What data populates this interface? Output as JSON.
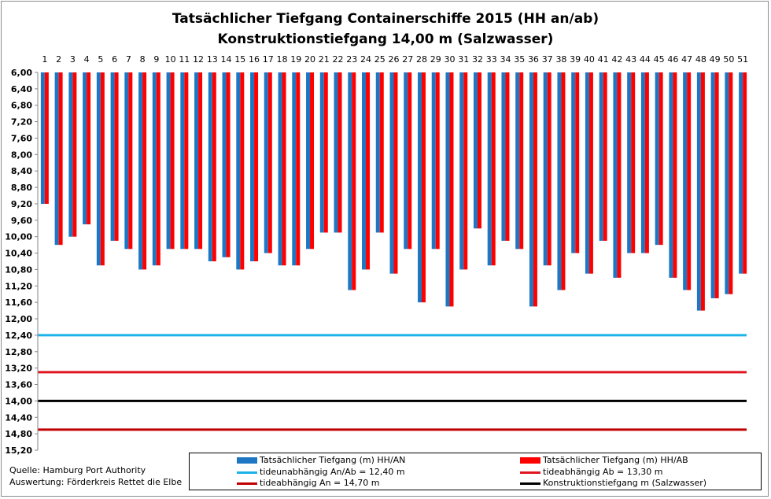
{
  "chart_data": {
    "type": "bar",
    "title": "Tatsächlicher  Tiefgang Containerschiffe  2015 (HH an/ab)",
    "subtitle": "Konstruktionstiefgang   14,00 m  (Salzwasser)",
    "ylim": [
      6.0,
      15.2
    ],
    "y_inverted": true,
    "y_ticks": [
      "6,00",
      "6,40",
      "6,80",
      "7,20",
      "7,60",
      "8,00",
      "8,40",
      "8,80",
      "9,20",
      "9,60",
      "10,00",
      "10,40",
      "10,80",
      "11,20",
      "11,60",
      "12,00",
      "12,40",
      "12,80",
      "13,20",
      "13,60",
      "14,00",
      "14,40",
      "14,80",
      "15,20"
    ],
    "y_tick_values": [
      6.0,
      6.4,
      6.8,
      7.2,
      7.6,
      8.0,
      8.4,
      8.8,
      9.2,
      9.6,
      10.0,
      10.4,
      10.8,
      11.2,
      11.6,
      12.0,
      12.4,
      12.8,
      13.2,
      13.6,
      14.0,
      14.4,
      14.8,
      15.2
    ],
    "categories": [
      "1",
      "2",
      "3",
      "4",
      "5",
      "6",
      "7",
      "8",
      "9",
      "10",
      "11",
      "12",
      "13",
      "14",
      "15",
      "16",
      "17",
      "18",
      "19",
      "20",
      "21",
      "22",
      "23",
      "24",
      "25",
      "26",
      "27",
      "28",
      "29",
      "30",
      "31",
      "32",
      "33",
      "34",
      "35",
      "36",
      "37",
      "38",
      "39",
      "40",
      "41",
      "42",
      "43",
      "44",
      "45",
      "46",
      "47",
      "48",
      "49",
      "50",
      "51"
    ],
    "series": [
      {
        "name": "Tatsächlicher Tiefgang (m) HH/AN",
        "color": "#1f77c4",
        "values": [
          9.2,
          10.2,
          10.0,
          9.7,
          10.7,
          10.1,
          10.3,
          10.8,
          10.7,
          10.3,
          10.3,
          10.3,
          10.6,
          10.5,
          10.8,
          10.6,
          10.4,
          10.7,
          10.7,
          10.3,
          9.9,
          9.9,
          11.3,
          10.8,
          9.9,
          10.9,
          10.3,
          11.6,
          10.3,
          11.7,
          10.8,
          9.8,
          10.7,
          10.1,
          10.3,
          11.7,
          10.7,
          11.3,
          10.4,
          10.9,
          10.1,
          11.0,
          10.4,
          10.4,
          10.2,
          11.0,
          11.3,
          11.8,
          11.5,
          11.4,
          10.9
        ]
      },
      {
        "name": "Tatsächlicher Tiefgang (m) HH/AB",
        "color": "#ff0000",
        "values": [
          9.2,
          10.2,
          10.0,
          9.7,
          10.7,
          10.1,
          10.3,
          10.8,
          10.7,
          10.3,
          10.3,
          10.3,
          10.6,
          10.5,
          10.8,
          10.6,
          10.4,
          10.7,
          10.7,
          10.3,
          9.9,
          9.9,
          11.3,
          10.8,
          9.9,
          10.9,
          10.3,
          11.6,
          10.3,
          11.7,
          10.8,
          9.8,
          10.7,
          10.1,
          10.3,
          11.7,
          10.7,
          11.3,
          10.4,
          10.9,
          10.1,
          11.0,
          10.4,
          10.4,
          10.2,
          11.0,
          11.3,
          11.8,
          11.5,
          11.4,
          10.9
        ]
      }
    ],
    "reference_lines": [
      {
        "name": "tideunabhängig An/Ab = 12,40 m",
        "value": 12.4,
        "color": "#1ab2e8"
      },
      {
        "name": "tideabhängig Ab = 13,30 m",
        "value": 13.3,
        "color": "#e0151f"
      },
      {
        "name": "tideabhängig An = 14,70 m",
        "value": 14.7,
        "color": "#c00000"
      },
      {
        "name": "Konstruktionstiefgang  m (Salzwasser)",
        "value": 14.0,
        "color": "#000000"
      }
    ],
    "grid": false
  },
  "source": {
    "line1": "Quelle: Hamburg Port Authority",
    "line2": "Auswertung: Förderkreis Rettet die Elbe"
  },
  "legend": {
    "an": "Tatsächlicher Tiefgang (m) HH/AN",
    "ab": "Tatsächlicher Tiefgang (m) HH/AB",
    "tideunabh": "tideunabhängig An/Ab = 12,40 m",
    "tideab": "tideabhängig Ab = 13,30 m",
    "tidean": "tideabhängig An = 14,70 m",
    "konstr": "Konstruktionstiefgang  m (Salzwasser)"
  }
}
